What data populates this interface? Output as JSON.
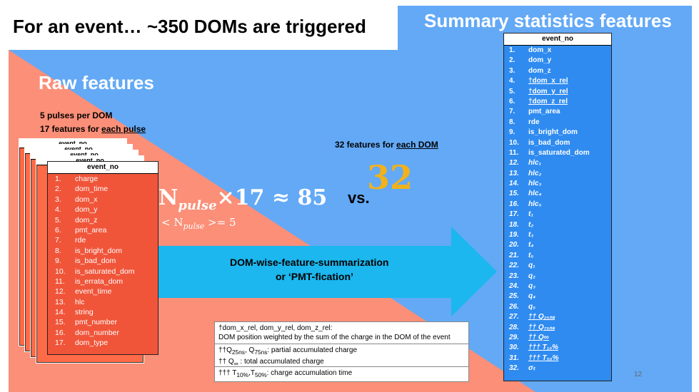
{
  "title": "For an event… ~350 DOMs are triggered",
  "summary_title": "Summary statistics features",
  "raw_title": "Raw features",
  "raw_note1": "5 pulses per DOM",
  "raw_note2_prefix": "17 features for ",
  "raw_note2_under": "each pulse",
  "raw_table": {
    "header": "event_no",
    "rows": [
      "charge",
      "dom_time",
      "dom_x",
      "dom_y",
      "dom_z",
      "pmt_area",
      "rde",
      "is_bright_dom",
      "is_bad_dom",
      "is_saturated_dom",
      "is_errata_dom",
      "event_time",
      "hlc",
      "string",
      "pmt_number",
      "dom_number",
      "dom_type"
    ]
  },
  "vs": "vs.",
  "big_number": "32",
  "features32_prefix": "32 features for ",
  "features32_under": "each DOM",
  "arrow_text1": "DOM-wise-feature-summarization",
  "arrow_text2": "or ‘PMT-fication’",
  "sum_table": {
    "header": "event_no",
    "rows": [
      {
        "label": "dom_x",
        "style": "plain"
      },
      {
        "label": "dom_y",
        "style": "plain"
      },
      {
        "label": "dom_z",
        "style": "plain"
      },
      {
        "label": "†dom_x_rel",
        "style": "under"
      },
      {
        "label": "†dom_y_rel",
        "style": "under"
      },
      {
        "label": "†dom_z_rel",
        "style": "under"
      },
      {
        "label": "pmt_area",
        "style": "plain"
      },
      {
        "label": "rde",
        "style": "plain"
      },
      {
        "label": "is_bright_dom",
        "style": "plain"
      },
      {
        "label": "is_bad_dom",
        "style": "plain"
      },
      {
        "label": "is_saturated_dom",
        "style": "plain"
      },
      {
        "label": "hlc₁",
        "style": "italic"
      },
      {
        "label": "hlc₂",
        "style": "italic"
      },
      {
        "label": "hlc₃",
        "style": "italic"
      },
      {
        "label": "hlc₄",
        "style": "italic"
      },
      {
        "label": "hlc₅",
        "style": "italic"
      },
      {
        "label": "t₁",
        "style": "italic"
      },
      {
        "label": "t₂",
        "style": "italic"
      },
      {
        "label": "t₃",
        "style": "italic"
      },
      {
        "label": "t₄",
        "style": "italic"
      },
      {
        "label": "t₅",
        "style": "italic"
      },
      {
        "label": "q₁",
        "style": "italic"
      },
      {
        "label": "q₂",
        "style": "italic"
      },
      {
        "label": "q₃",
        "style": "italic"
      },
      {
        "label": "q₄",
        "style": "italic"
      },
      {
        "label": "q₅",
        "style": "italic"
      },
      {
        "label": "†† Q₂₅ₙₛ",
        "style": "italic-under"
      },
      {
        "label": "†† Q₇₅ₙₛ",
        "style": "italic-under"
      },
      {
        "label": "†† Q∞",
        "style": "italic-under"
      },
      {
        "label": "††† T₁₀%",
        "style": "italic-under"
      },
      {
        "label": "††† T₅₀%",
        "style": "italic-under"
      },
      {
        "label": "σₜ",
        "style": "italic"
      }
    ]
  },
  "footnotes": {
    "f1_line1": "†dom_x_rel, dom_y_rel, dom_z_rel:",
    "f1_line2": "DOM position weighted by the sum of the charge in the DOM of the event"
  },
  "page_number": "12",
  "colors": {
    "salmon": "#fb8f78",
    "blue": "#63a9f6",
    "arrow": "#1bb7ee",
    "raw_table": "#f0553a",
    "summary_table": "#2f8bf0",
    "accent_32": "#f2b21b"
  }
}
